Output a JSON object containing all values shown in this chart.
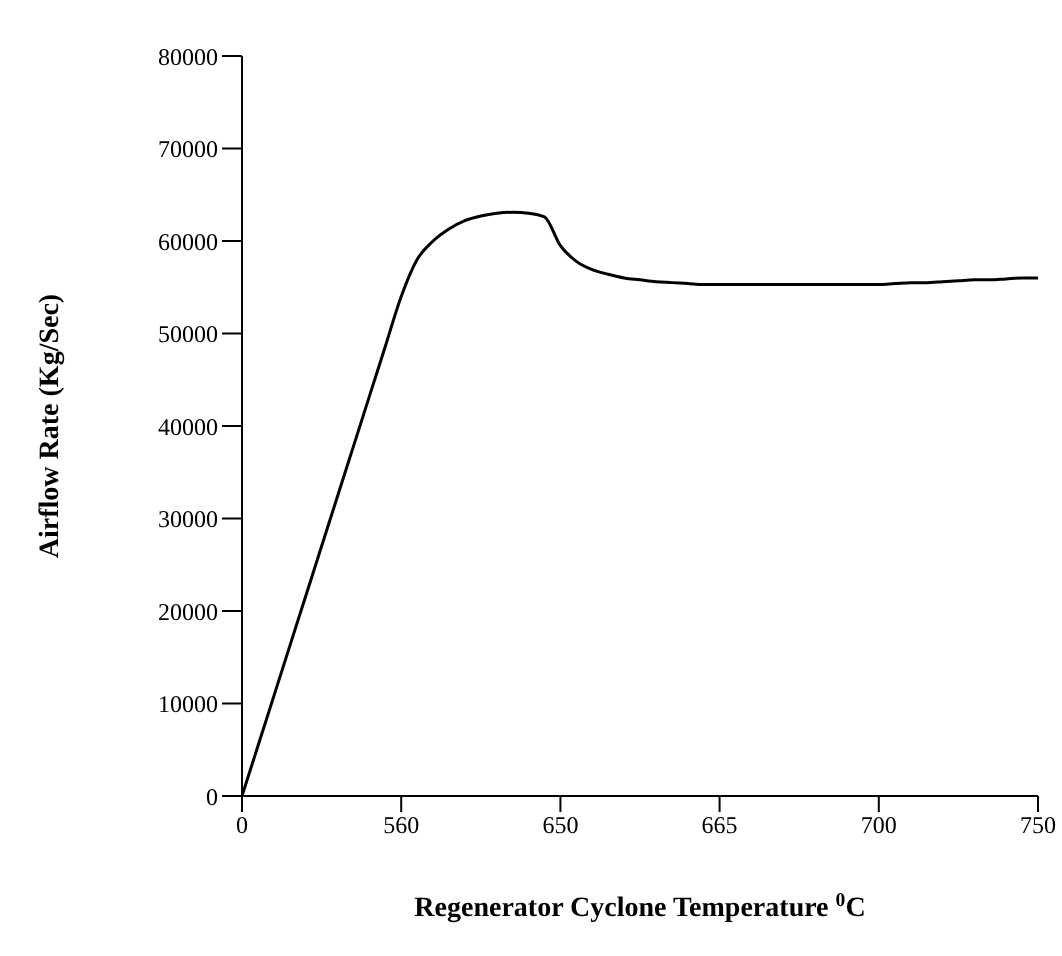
{
  "chart_data": {
    "type": "line",
    "xlabel": "Regenerator Cyclone Temperature $^{0}$C",
    "ylabel": "Airflow Rate (Kg/Sec)",
    "categories": [
      "0",
      null,
      null,
      null,
      null,
      null,
      null,
      null,
      null,
      null,
      "560",
      null,
      null,
      null,
      null,
      null,
      null,
      null,
      null,
      null,
      "650",
      null,
      null,
      null,
      null,
      null,
      null,
      null,
      null,
      null,
      "665",
      null,
      null,
      null,
      null,
      null,
      null,
      null,
      null,
      null,
      "700",
      null,
      null,
      null,
      null,
      null,
      null,
      null,
      null,
      null,
      "750"
    ],
    "series": [
      {
        "color": "#000000",
        "values": [
          0,
          5400,
          10800,
          16200,
          21600,
          27000,
          32400,
          37800,
          43200,
          48600,
          54000,
          58000,
          60000,
          61300,
          62200,
          62700,
          63000,
          63100,
          63000,
          62600,
          59500,
          57800,
          56900,
          56400,
          56000,
          55800,
          55600,
          55500,
          55400,
          55300,
          55300,
          55300,
          55300,
          55300,
          55300,
          55300,
          55300,
          55300,
          55300,
          55300,
          55300,
          55400,
          55500,
          55500,
          55600,
          55700,
          55800,
          55800,
          55900,
          56000,
          56000
        ]
      }
    ],
    "ylim": [
      0,
      80000
    ],
    "yticks": [
      0,
      10000,
      20000,
      30000,
      40000,
      50000,
      60000,
      70000,
      80000
    ],
    "grid": false,
    "legend": false,
    "marker": "none",
    "line_style": "solid"
  }
}
